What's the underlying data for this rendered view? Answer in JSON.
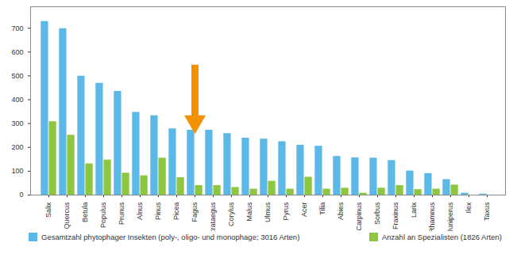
{
  "chart_data": {
    "type": "bar",
    "categories": [
      "Salix",
      "Quercus",
      "Betula",
      "Populus",
      "Prunus",
      "Alnus",
      "Pinus",
      "Picea",
      "Fagus",
      "Crataegus",
      "Corylus",
      "Malus",
      "Ulmus",
      "Pyrus",
      "Acer",
      "Tilia",
      "Abies",
      "Carpinus",
      "Sorbus",
      "Fraxinus",
      "Larix",
      "Rhamnus",
      "Juniperus",
      "Ilex",
      "Taxus"
    ],
    "series": [
      {
        "name": "Gesamtzahl phytophager Insekten (poly-, oligo- und monophage; 3016 Arten)",
        "color": "#5cb8e6",
        "values": [
          728,
          698,
          499,
          469,
          435,
          347,
          333,
          278,
          272,
          272,
          258,
          239,
          235,
          224,
          209,
          205,
          162,
          156,
          155,
          145,
          101,
          90,
          65,
          8,
          4
        ]
      },
      {
        "name": "Anzahl an Spezialisten (1826 Arten)",
        "color": "#8dc63f",
        "values": [
          308,
          251,
          131,
          147,
          92,
          81,
          155,
          73,
          40,
          40,
          32,
          25,
          58,
          25,
          75,
          25,
          29,
          8,
          29,
          40,
          23,
          25,
          42,
          0,
          0
        ]
      }
    ],
    "ylim": [
      0,
      790
    ],
    "yticks": [
      0,
      100,
      200,
      300,
      400,
      500,
      600,
      700
    ],
    "grid": false,
    "legend": "bottom",
    "annotations": [
      {
        "type": "arrow",
        "x": "Fagus",
        "y1": 545,
        "y2": 285,
        "color": "#f39200"
      }
    ]
  }
}
